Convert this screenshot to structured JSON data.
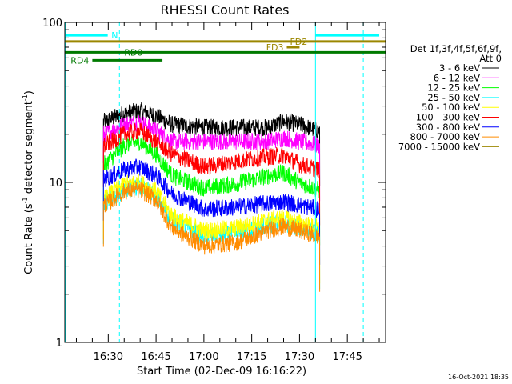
{
  "chart_data": {
    "type": "line",
    "title": "RHESSI Count Rates",
    "xlabel": "Start Time (02-Dec-09 16:16:22)",
    "ylabel_main": "Count Rate (s",
    "ylabel_sup1": "-1",
    "ylabel_mid": " detector segment",
    "ylabel_sup2": "-1",
    "ylabel_end": ")",
    "y_scale": "log",
    "ylim": [
      1,
      100
    ],
    "y_ticks": [
      {
        "value": 1,
        "label": "1"
      },
      {
        "value": 10,
        "label": "10"
      },
      {
        "value": 100,
        "label": "100"
      }
    ],
    "xlim": [
      "16:16:22",
      "17:57:00"
    ],
    "x_ticks": [
      {
        "time": "16:30",
        "label": "16:30"
      },
      {
        "time": "16:45",
        "label": "16:45"
      },
      {
        "time": "17:00",
        "label": "17:00"
      },
      {
        "time": "17:15",
        "label": "17:15"
      },
      {
        "time": "17:30",
        "label": "17:30"
      },
      {
        "time": "17:45",
        "label": "17:45"
      }
    ],
    "data_time_range": [
      "16:28:30",
      "17:36:20"
    ],
    "legend_title_line1": "Det 1f,3f,4f,5f,6f,9f,",
    "legend_title_line2": "Att 0",
    "series": [
      {
        "name": "3 - 6 keV",
        "color": "#000000",
        "x": [
          "16:29",
          "16:35",
          "16:40",
          "16:45",
          "16:50",
          "17:00",
          "17:10",
          "17:20",
          "17:25",
          "17:30",
          "17:36"
        ],
        "y": [
          24,
          27,
          28,
          26,
          23,
          22,
          22,
          22,
          24,
          23,
          21
        ]
      },
      {
        "name": "6 - 12 keV",
        "color": "#ff00ff",
        "x": [
          "16:29",
          "16:35",
          "16:40",
          "16:45",
          "16:50",
          "17:00",
          "17:10",
          "17:20",
          "17:25",
          "17:30",
          "17:36"
        ],
        "y": [
          20,
          23,
          24,
          21,
          18,
          18,
          18,
          18,
          19,
          18,
          17
        ]
      },
      {
        "name": "12 - 25 keV",
        "color": "#00ff00",
        "x": [
          "16:29",
          "16:35",
          "16:40",
          "16:45",
          "16:50",
          "17:00",
          "17:10",
          "17:20",
          "17:25",
          "17:30",
          "17:36"
        ],
        "y": [
          13,
          17,
          18,
          15,
          11,
          9.2,
          9.8,
          11,
          11.5,
          10,
          9
        ]
      },
      {
        "name": "25 - 50 keV",
        "color": "#00ffff",
        "x": [
          "16:29",
          "16:35",
          "16:40",
          "16:45",
          "16:50",
          "17:00",
          "17:10",
          "17:20",
          "17:25",
          "17:30",
          "17:36"
        ],
        "y": [
          7.5,
          9,
          9.5,
          8.2,
          5.8,
          4.6,
          4.8,
          5.4,
          5.6,
          5.2,
          4.8
        ]
      },
      {
        "name": "50 - 100 keV",
        "color": "#ffff00",
        "x": [
          "16:29",
          "16:35",
          "16:40",
          "16:45",
          "16:50",
          "17:00",
          "17:10",
          "17:20",
          "17:25",
          "17:30",
          "17:36"
        ],
        "y": [
          8,
          9.8,
          10,
          8.8,
          6.2,
          5,
          5.2,
          5.8,
          6,
          5.6,
          5.2
        ]
      },
      {
        "name": "100 - 300 keV",
        "color": "#ff0000",
        "x": [
          "16:29",
          "16:35",
          "16:40",
          "16:45",
          "16:50",
          "17:00",
          "17:10",
          "17:20",
          "17:25",
          "17:30",
          "17:36"
        ],
        "y": [
          17,
          20,
          21,
          18,
          15,
          12.5,
          13.5,
          14.5,
          14.8,
          13,
          12
        ]
      },
      {
        "name": "300 - 800 keV",
        "color": "#0000ff",
        "x": [
          "16:29",
          "16:35",
          "16:40",
          "16:45",
          "16:50",
          "17:00",
          "17:10",
          "17:20",
          "17:25",
          "17:30",
          "17:36"
        ],
        "y": [
          10.5,
          12,
          12.5,
          11,
          8.5,
          6.8,
          7,
          7.4,
          7.6,
          7.2,
          6.8
        ]
      },
      {
        "name": "800 - 7000 keV",
        "color": "#ff8c00",
        "x": [
          "16:29",
          "16:35",
          "16:40",
          "16:45",
          "16:50",
          "17:00",
          "17:10",
          "17:20",
          "17:25",
          "17:30",
          "17:36"
        ],
        "y": [
          7.2,
          8.8,
          9,
          7.8,
          5.2,
          4,
          4.2,
          5,
          5.3,
          5,
          4.6
        ]
      },
      {
        "name": "7000 - 15000 keV",
        "color": "#9b8700",
        "x": [],
        "y": []
      }
    ],
    "bars": [
      {
        "label": "N",
        "color": "#00ffff",
        "start": "16:16:22",
        "end": "16:29:50",
        "y": 83
      },
      {
        "label": "FD2",
        "color": "#9b8700",
        "start": "16:16:22",
        "end": "17:57:00",
        "y": 76
      },
      {
        "label": "FD3",
        "color": "#9b8700",
        "start": "17:26:00",
        "end": "17:30:00",
        "y": 70
      },
      {
        "label": "RD0",
        "color": "#007a00",
        "start": "16:16:22",
        "end": "17:57:00",
        "y": 65
      },
      {
        "label": "RD4",
        "color": "#007a00",
        "start": "16:25:00",
        "end": "16:47:00",
        "y": 58
      },
      {
        "label": "",
        "color": "#00ffff",
        "start": "17:35:00",
        "end": "17:55:00",
        "y": 83
      }
    ],
    "vlines": [
      {
        "time": "16:16:30",
        "color": "#00ffff",
        "style": "solid"
      },
      {
        "time": "16:33:30",
        "color": "#00ffff",
        "style": "dashed"
      },
      {
        "time": "17:35:00",
        "color": "#00ffff",
        "style": "solid"
      },
      {
        "time": "17:50:00",
        "color": "#00ffff",
        "style": "dashed"
      }
    ],
    "footer_timestamp": "16-Oct-2021 18:35"
  }
}
